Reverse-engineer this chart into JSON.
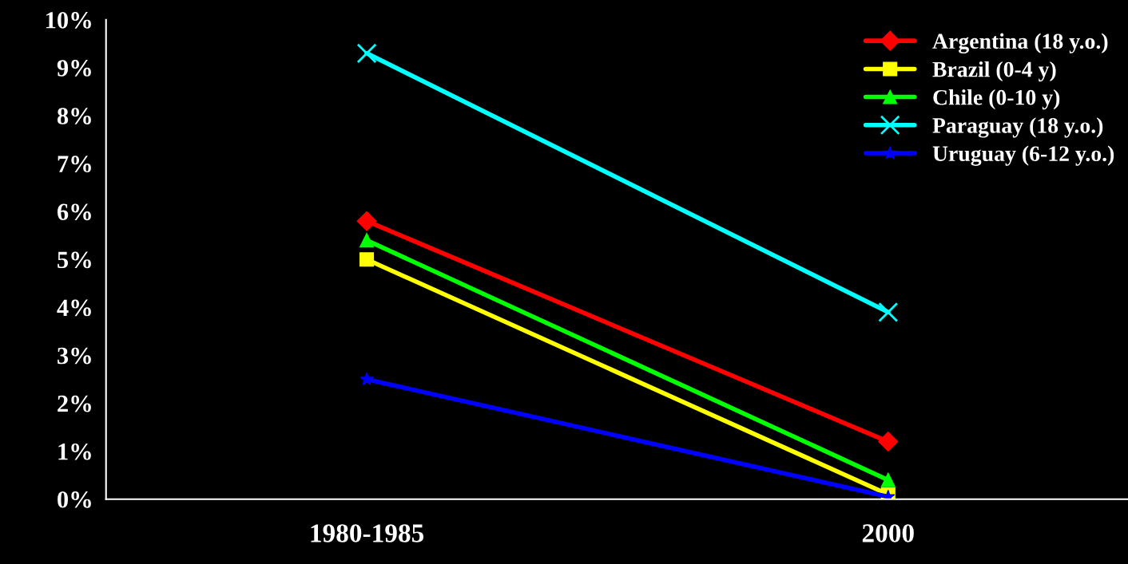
{
  "chart_data": {
    "type": "line",
    "categories": [
      "1980-1985",
      "2000"
    ],
    "series": [
      {
        "name": "Argentina (18 y.o.)",
        "color": "#ff0000",
        "marker": "diamond",
        "values": [
          5.8,
          1.2
        ]
      },
      {
        "name": "Brazil (0-4 y)",
        "color": "#ffff00",
        "marker": "square",
        "values": [
          5.0,
          0.1
        ]
      },
      {
        "name": "Chile (0-10 y)",
        "color": "#00ff00",
        "marker": "triangle",
        "values": [
          5.4,
          0.4
        ]
      },
      {
        "name": "Paraguay (18 y.o.)",
        "color": "#00ffff",
        "marker": "cross",
        "values": [
          9.3,
          3.9
        ]
      },
      {
        "name": "Uruguay (6-12 y.o.)",
        "color": "#0000ff",
        "marker": "star",
        "values": [
          2.5,
          0.05
        ]
      }
    ],
    "ylim": [
      0,
      10
    ],
    "yticks": [
      {
        "value": 0,
        "label": "0%"
      },
      {
        "value": 1,
        "label": "1%"
      },
      {
        "value": 2,
        "label": "2%"
      },
      {
        "value": 3,
        "label": "3%"
      },
      {
        "value": 4,
        "label": "4%"
      },
      {
        "value": 5,
        "label": "5%"
      },
      {
        "value": 6,
        "label": "6%"
      },
      {
        "value": 7,
        "label": "7%"
      },
      {
        "value": 8,
        "label": "8%"
      },
      {
        "value": 9,
        "label": "9%"
      },
      {
        "value": 10,
        "label": "10%"
      }
    ],
    "grid": false,
    "legend": "top right",
    "line_style": "solid"
  }
}
